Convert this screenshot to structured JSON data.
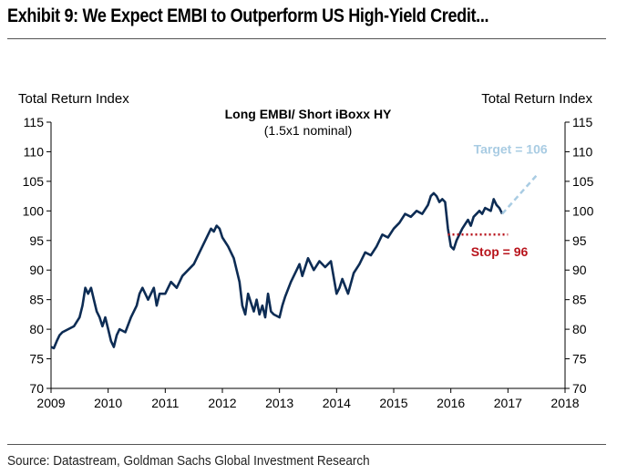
{
  "exhibit_title": "Exhibit 9: We Expect EMBI to Outperform US High-Yield Credit...",
  "source": "Source: Datastream, Goldman Sachs Global Investment Research",
  "colors": {
    "series": "#0d2c54",
    "target": "#a9cce3",
    "stop": "#b8141c"
  },
  "chart_data": {
    "type": "line",
    "title": "Long EMBI/ Short iBoxx HY",
    "subtitle": "(1.5x1 nominal)",
    "ylabel_left": "Total Return Index",
    "ylabel_right": "Total Return Index",
    "xlim": [
      2009,
      2018
    ],
    "ylim": [
      70,
      115
    ],
    "x_ticks": [
      "2009",
      "2010",
      "2011",
      "2012",
      "2013",
      "2014",
      "2015",
      "2016",
      "2017",
      "2018"
    ],
    "y_ticks": [
      "70",
      "75",
      "80",
      "85",
      "90",
      "95",
      "100",
      "105",
      "110",
      "115"
    ],
    "grid": false,
    "series": [
      {
        "x": [
          2009.0,
          2009.05,
          2009.1,
          2009.15,
          2009.2,
          2009.3,
          2009.4,
          2009.5,
          2009.55,
          2009.6,
          2009.65,
          2009.7,
          2009.75,
          2009.8,
          2009.85,
          2009.9,
          2009.95,
          2010.0,
          2010.05,
          2010.1,
          2010.15,
          2010.2,
          2010.3,
          2010.4,
          2010.5,
          2010.55,
          2010.6,
          2010.65,
          2010.7,
          2010.8,
          2010.85,
          2010.9,
          2011.0,
          2011.1,
          2011.2,
          2011.3,
          2011.4,
          2011.5,
          2011.6,
          2011.7,
          2011.8,
          2011.85,
          2011.9,
          2011.95,
          2012.0,
          2012.1,
          2012.2,
          2012.3,
          2012.35,
          2012.4,
          2012.45,
          2012.5,
          2012.55,
          2012.6,
          2012.65,
          2012.7,
          2012.75,
          2012.8,
          2012.85,
          2012.9,
          2013.0,
          2013.05,
          2013.1,
          2013.2,
          2013.3,
          2013.35,
          2013.4,
          2013.5,
          2013.6,
          2013.7,
          2013.8,
          2013.9,
          2014.0,
          2014.05,
          2014.1,
          2014.2,
          2014.3,
          2014.4,
          2014.5,
          2014.6,
          2014.7,
          2014.8,
          2014.9,
          2015.0,
          2015.1,
          2015.2,
          2015.3,
          2015.4,
          2015.5,
          2015.6,
          2015.65,
          2015.7,
          2015.75,
          2015.8,
          2015.85,
          2015.9,
          2015.95,
          2016.0,
          2016.05,
          2016.1,
          2016.2,
          2016.3,
          2016.35,
          2016.4,
          2016.5,
          2016.55,
          2016.6,
          2016.7,
          2016.75,
          2016.8,
          2016.85,
          2016.9
        ],
        "y": [
          77,
          76.8,
          78,
          79,
          79.5,
          80,
          80.5,
          82,
          84,
          87,
          86,
          87,
          85,
          83,
          82,
          80.5,
          82,
          80,
          78,
          77,
          79,
          80,
          79.5,
          82,
          84,
          86,
          87,
          86,
          85,
          87,
          84,
          86,
          86,
          88,
          87,
          89,
          90,
          91,
          93,
          95,
          97,
          96.5,
          97.5,
          97,
          95.5,
          94,
          92,
          88,
          84,
          82.5,
          86,
          84.5,
          83,
          85,
          82.5,
          84,
          82,
          86,
          83,
          82.5,
          82,
          84,
          85.5,
          88,
          90,
          91,
          89,
          92,
          90,
          91.5,
          90.5,
          91.5,
          86,
          87,
          88.5,
          86,
          89.5,
          91,
          93,
          92.5,
          94,
          96,
          95.5,
          97,
          98,
          99.5,
          99,
          100,
          99.5,
          101,
          102.5,
          103,
          102.5,
          101.5,
          102,
          101.5,
          97,
          94,
          93.5,
          95,
          97,
          98.5,
          97.5,
          99,
          100,
          99.5,
          100.5,
          100,
          102,
          101,
          100.5,
          99.5
        ]
      }
    ],
    "annotations": [
      {
        "label": "Target = 106",
        "from": [
          2016.9,
          99.5
        ],
        "to": [
          2017.5,
          106
        ],
        "style": "dashed"
      },
      {
        "label": "Stop = 96",
        "from": [
          2015.95,
          96
        ],
        "to": [
          2017.0,
          96
        ],
        "style": "dotted"
      }
    ]
  }
}
